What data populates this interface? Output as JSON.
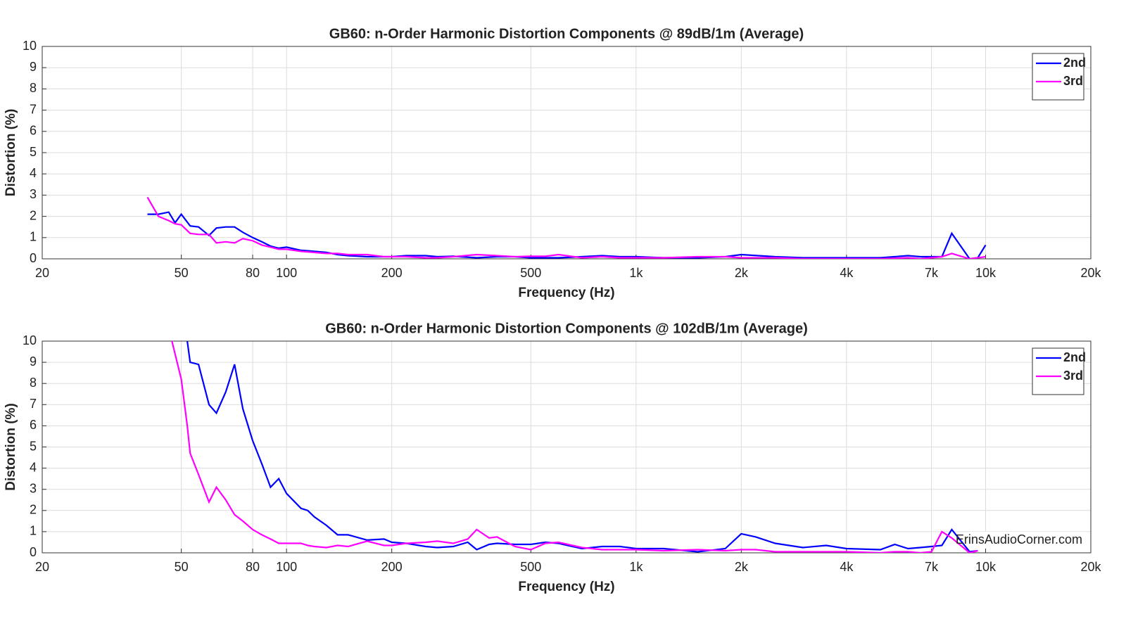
{
  "chart_data": [
    {
      "type": "line",
      "title": "GB60: n-Order Harmonic Distortion Components @ 89dB/1m (Average)",
      "xlabel": "Frequency (Hz)",
      "ylabel": "Distortion (%)",
      "xscale": "log",
      "grid": true,
      "legend": "northeast",
      "xlim": [
        20,
        20000
      ],
      "ylim": [
        0,
        10
      ],
      "xticks": [
        20,
        50,
        80,
        100,
        200,
        500,
        {
          "value": 1000,
          "label": "1k"
        },
        {
          "value": 2000,
          "label": "2k"
        },
        {
          "value": 4000,
          "label": "4k"
        },
        {
          "value": 7000,
          "label": "7k"
        },
        {
          "value": 10000,
          "label": "10k"
        },
        {
          "value": 20000,
          "label": "20k"
        }
      ],
      "yticks": [
        0,
        1,
        2,
        3,
        4,
        5,
        6,
        7,
        8,
        9,
        10
      ],
      "x": [
        40,
        43,
        46,
        48,
        50,
        53,
        56,
        60,
        63,
        67,
        71,
        75,
        80,
        85,
        90,
        95,
        100,
        110,
        120,
        130,
        140,
        150,
        170,
        190,
        200,
        220,
        250,
        270,
        300,
        350,
        400,
        450,
        500,
        550,
        600,
        700,
        800,
        900,
        1000,
        1200,
        1500,
        1800,
        2000,
        2500,
        3000,
        3500,
        4000,
        5000,
        6000,
        6500,
        7000,
        7500,
        8000,
        9000,
        9500,
        10000
      ],
      "series": [
        {
          "name": "2nd",
          "color": "#0000ff",
          "values": [
            2.1,
            2.1,
            2.2,
            1.7,
            2.1,
            1.55,
            1.5,
            1.1,
            1.45,
            1.5,
            1.5,
            1.25,
            1.0,
            0.8,
            0.6,
            0.5,
            0.55,
            0.4,
            0.35,
            0.3,
            0.2,
            0.15,
            0.1,
            0.1,
            0.1,
            0.15,
            0.15,
            0.1,
            0.12,
            0.05,
            0.1,
            0.1,
            0.05,
            0.05,
            0.05,
            0.1,
            0.15,
            0.1,
            0.1,
            0.05,
            0.05,
            0.1,
            0.2,
            0.1,
            0.05,
            0.05,
            0.05,
            0.05,
            0.15,
            0.1,
            0.1,
            0.1,
            1.2,
            0,
            0.05,
            0.65
          ]
        },
        {
          "name": "3rd",
          "color": "#ff00ff",
          "values": [
            2.9,
            2.0,
            1.8,
            1.65,
            1.6,
            1.2,
            1.15,
            1.15,
            0.75,
            0.8,
            0.75,
            0.95,
            0.85,
            0.65,
            0.55,
            0.45,
            0.45,
            0.35,
            0.3,
            0.25,
            0.25,
            0.2,
            0.2,
            0.1,
            0.1,
            0.1,
            0.05,
            0.05,
            0.1,
            0.2,
            0.15,
            0.1,
            0.12,
            0.12,
            0.2,
            0.05,
            0.1,
            0.05,
            0.05,
            0.05,
            0.1,
            0.1,
            0.05,
            0.05,
            0,
            0,
            0,
            0,
            0.05,
            0,
            0.05,
            0.1,
            0.25,
            0,
            0.05,
            0.1
          ]
        }
      ]
    },
    {
      "type": "line",
      "title": "GB60: n-Order Harmonic Distortion Components @ 102dB/1m (Average)",
      "xlabel": "Frequency (Hz)",
      "ylabel": "Distortion (%)",
      "xscale": "log",
      "grid": true,
      "legend": "northeast",
      "annotation": "ErinsAudioCorner.com",
      "xlim": [
        20,
        20000
      ],
      "ylim": [
        0,
        10
      ],
      "xticks": [
        20,
        50,
        80,
        100,
        200,
        500,
        {
          "value": 1000,
          "label": "1k"
        },
        {
          "value": 2000,
          "label": "2k"
        },
        {
          "value": 4000,
          "label": "4k"
        },
        {
          "value": 7000,
          "label": "7k"
        },
        {
          "value": 10000,
          "label": "10k"
        },
        {
          "value": 20000,
          "label": "20k"
        }
      ],
      "yticks": [
        0,
        1,
        2,
        3,
        4,
        5,
        6,
        7,
        8,
        9,
        10
      ],
      "x": [
        47,
        50,
        52,
        53,
        56,
        60,
        63,
        67,
        71,
        75,
        80,
        85,
        90,
        95,
        100,
        110,
        115,
        120,
        130,
        140,
        150,
        170,
        190,
        200,
        220,
        250,
        270,
        300,
        330,
        350,
        380,
        400,
        450,
        500,
        550,
        600,
        700,
        800,
        900,
        1000,
        1200,
        1500,
        1800,
        2000,
        2200,
        2500,
        3000,
        3500,
        4000,
        5000,
        5500,
        6000,
        6500,
        7000,
        7500,
        8000,
        9000,
        9500
      ],
      "series": [
        {
          "name": "2nd",
          "color": "#0000ff",
          "values": [
            null,
            null,
            10,
            9.0,
            8.9,
            7.0,
            6.6,
            7.6,
            8.9,
            6.8,
            5.3,
            4.2,
            3.1,
            3.5,
            2.8,
            2.1,
            2.0,
            1.7,
            1.3,
            0.85,
            0.85,
            0.6,
            0.65,
            0.5,
            0.45,
            0.3,
            0.25,
            0.3,
            0.5,
            0.15,
            0.4,
            0.45,
            0.4,
            0.4,
            0.5,
            0.45,
            0.2,
            0.3,
            0.3,
            0.2,
            0.2,
            0.05,
            0.2,
            0.9,
            0.75,
            0.45,
            0.25,
            0.35,
            0.2,
            0.15,
            0.4,
            0.2,
            0.25,
            0.3,
            0.35,
            1.1,
            0.05,
            0.1
          ]
        },
        {
          "name": "3rd",
          "color": "#ff00ff",
          "values": [
            10,
            8.2,
            6.0,
            4.7,
            3.7,
            2.4,
            3.1,
            2.5,
            1.8,
            1.5,
            1.1,
            0.85,
            0.65,
            0.45,
            0.45,
            0.45,
            0.35,
            0.3,
            0.25,
            0.35,
            0.3,
            0.55,
            0.35,
            0.35,
            0.45,
            0.5,
            0.55,
            0.45,
            0.65,
            1.1,
            0.7,
            0.75,
            0.3,
            0.15,
            0.45,
            0.5,
            0.25,
            0.15,
            0.15,
            0.15,
            0.1,
            0.15,
            0.1,
            0.15,
            0.15,
            0.05,
            0.05,
            0.05,
            0.05,
            0,
            0.05,
            0.05,
            0,
            0.05,
            1.0,
            0.7,
            0,
            0.1
          ]
        }
      ]
    }
  ]
}
